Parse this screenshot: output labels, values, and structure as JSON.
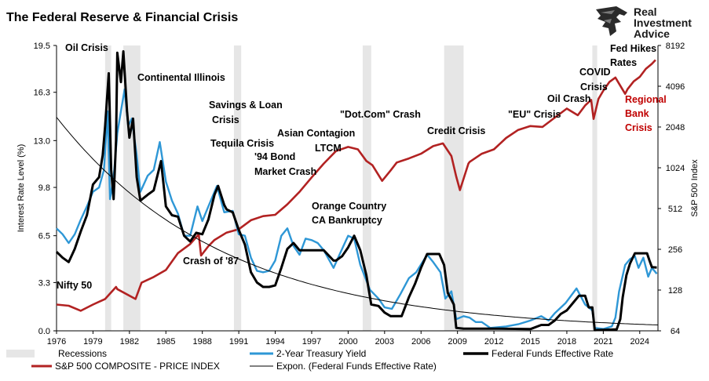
{
  "title": "The Federal Reserve & Financial Crisis",
  "brand": {
    "name": "Real Investment Advice",
    "lines": [
      "Real",
      "Investment",
      "Advice"
    ],
    "logo_icon": "eagle-head-icon"
  },
  "chart_data": {
    "type": "line",
    "x_ticks": [
      "1976",
      "1979",
      "1982",
      "1985",
      "1988",
      "1991",
      "1994",
      "1997",
      "2000",
      "2003",
      "2006",
      "2009",
      "2012",
      "2015",
      "2018",
      "2021",
      "2024"
    ],
    "xlim": [
      1976,
      2025.5
    ],
    "ylabel": "Interest Rate Level (%)",
    "ylim": [
      0,
      19.5
    ],
    "yticks": [
      "0.0",
      "3.3",
      "6.5",
      "9.8",
      "13.0",
      "16.3",
      "19.5"
    ],
    "y2label": "S&P 500 Index",
    "y2_scale": "log2",
    "y2lim": [
      64,
      8192
    ],
    "y2ticks": [
      "64",
      "128",
      "256",
      "512",
      "1024",
      "2048",
      "4096",
      "8192"
    ],
    "recessions": [
      [
        1980.0,
        1980.5
      ],
      [
        1981.5,
        1982.9
      ],
      [
        1990.6,
        1991.2
      ],
      [
        2001.2,
        2001.9
      ],
      [
        2007.9,
        2009.5
      ],
      [
        2020.1,
        2020.5
      ]
    ],
    "series": [
      {
        "name": "Federal Funds Effective Rate",
        "axis": "left",
        "color": "#000000",
        "points": [
          [
            1976,
            5.4
          ],
          [
            1976.5,
            5.0
          ],
          [
            1977,
            4.7
          ],
          [
            1977.5,
            5.6
          ],
          [
            1978,
            6.8
          ],
          [
            1978.5,
            7.9
          ],
          [
            1979,
            10.0
          ],
          [
            1979.5,
            10.5
          ],
          [
            1979.8,
            12.0
          ],
          [
            1980,
            14.0
          ],
          [
            1980.3,
            17.6
          ],
          [
            1980.5,
            11.0
          ],
          [
            1980.7,
            9.0
          ],
          [
            1980.9,
            13.0
          ],
          [
            1981,
            19.0
          ],
          [
            1981.3,
            17.0
          ],
          [
            1981.5,
            19.1
          ],
          [
            1981.8,
            15.0
          ],
          [
            1982,
            13.2
          ],
          [
            1982.3,
            14.5
          ],
          [
            1982.6,
            10.5
          ],
          [
            1982.9,
            8.9
          ],
          [
            1983.5,
            9.3
          ],
          [
            1984,
            9.6
          ],
          [
            1984.6,
            11.6
          ],
          [
            1985,
            8.5
          ],
          [
            1985.5,
            7.9
          ],
          [
            1986,
            7.8
          ],
          [
            1986.5,
            6.5
          ],
          [
            1987,
            6.1
          ],
          [
            1987.5,
            6.7
          ],
          [
            1988,
            6.6
          ],
          [
            1988.5,
            7.6
          ],
          [
            1989,
            9.3
          ],
          [
            1989.3,
            9.9
          ],
          [
            1989.8,
            8.6
          ],
          [
            1990,
            8.3
          ],
          [
            1990.5,
            8.1
          ],
          [
            1991,
            6.9
          ],
          [
            1991.5,
            5.9
          ],
          [
            1992,
            4.0
          ],
          [
            1992.5,
            3.3
          ],
          [
            1993,
            3.0
          ],
          [
            1993.5,
            3.0
          ],
          [
            1994,
            3.1
          ],
          [
            1994.5,
            4.3
          ],
          [
            1995,
            5.6
          ],
          [
            1995.5,
            6.0
          ],
          [
            1996,
            5.5
          ],
          [
            1997,
            5.5
          ],
          [
            1998,
            5.5
          ],
          [
            1998.8,
            4.8
          ],
          [
            1999,
            4.8
          ],
          [
            1999.5,
            5.1
          ],
          [
            2000,
            5.7
          ],
          [
            2000.5,
            6.5
          ],
          [
            2001,
            5.5
          ],
          [
            2001.5,
            3.8
          ],
          [
            2001.9,
            1.8
          ],
          [
            2002.5,
            1.7
          ],
          [
            2003,
            1.25
          ],
          [
            2003.5,
            1.0
          ],
          [
            2004.4,
            1.0
          ],
          [
            2005,
            2.3
          ],
          [
            2005.5,
            3.2
          ],
          [
            2006,
            4.3
          ],
          [
            2006.5,
            5.25
          ],
          [
            2007.5,
            5.25
          ],
          [
            2007.9,
            4.5
          ],
          [
            2008.2,
            2.6
          ],
          [
            2008.7,
            1.8
          ],
          [
            2008.9,
            0.2
          ],
          [
            2009.5,
            0.15
          ],
          [
            2012,
            0.15
          ],
          [
            2015,
            0.12
          ],
          [
            2015.9,
            0.4
          ],
          [
            2016.5,
            0.4
          ],
          [
            2017,
            0.7
          ],
          [
            2017.5,
            1.15
          ],
          [
            2018,
            1.4
          ],
          [
            2018.5,
            1.9
          ],
          [
            2019,
            2.4
          ],
          [
            2019.5,
            2.4
          ],
          [
            2019.8,
            1.6
          ],
          [
            2020.1,
            1.6
          ],
          [
            2020.3,
            0.05
          ],
          [
            2021.5,
            0.08
          ],
          [
            2022.1,
            0.1
          ],
          [
            2022.4,
            0.8
          ],
          [
            2022.6,
            2.3
          ],
          [
            2022.9,
            3.8
          ],
          [
            2023.2,
            4.6
          ],
          [
            2023.6,
            5.3
          ],
          [
            2024.6,
            5.3
          ],
          [
            2024.8,
            4.8
          ],
          [
            2025.0,
            4.35
          ],
          [
            2025.4,
            4.33
          ]
        ]
      },
      {
        "name": "2-Year Treasury Yield",
        "axis": "left",
        "color": "#2e97d6",
        "points": [
          [
            1976,
            7.0
          ],
          [
            1976.5,
            6.6
          ],
          [
            1977,
            6.0
          ],
          [
            1977.5,
            6.6
          ],
          [
            1978,
            7.6
          ],
          [
            1978.5,
            8.5
          ],
          [
            1979,
            9.5
          ],
          [
            1979.5,
            9.8
          ],
          [
            1979.9,
            11.0
          ],
          [
            1980.2,
            15.0
          ],
          [
            1980.4,
            9.0
          ],
          [
            1980.7,
            10.5
          ],
          [
            1981,
            13.5
          ],
          [
            1981.3,
            15.0
          ],
          [
            1981.6,
            16.5
          ],
          [
            1981.9,
            14.0
          ],
          [
            1982.2,
            14.5
          ],
          [
            1982.6,
            12.0
          ],
          [
            1982.9,
            9.5
          ],
          [
            1983.5,
            10.6
          ],
          [
            1984,
            11.0
          ],
          [
            1984.5,
            12.9
          ],
          [
            1985,
            10.2
          ],
          [
            1985.5,
            8.9
          ],
          [
            1986,
            8.0
          ],
          [
            1986.5,
            6.5
          ],
          [
            1987,
            6.5
          ],
          [
            1987.6,
            8.5
          ],
          [
            1988,
            7.5
          ],
          [
            1988.5,
            8.5
          ],
          [
            1989.2,
            9.9
          ],
          [
            1989.8,
            8.1
          ],
          [
            1990.5,
            8.2
          ],
          [
            1991,
            6.6
          ],
          [
            1991.5,
            6.5
          ],
          [
            1992,
            5.0
          ],
          [
            1992.5,
            4.1
          ],
          [
            1993,
            4.0
          ],
          [
            1993.5,
            4.1
          ],
          [
            1994,
            4.8
          ],
          [
            1994.5,
            6.5
          ],
          [
            1995,
            7.0
          ],
          [
            1995.5,
            5.8
          ],
          [
            1996,
            5.2
          ],
          [
            1996.5,
            6.3
          ],
          [
            1997,
            6.2
          ],
          [
            1997.5,
            6.0
          ],
          [
            1998,
            5.5
          ],
          [
            1998.8,
            4.3
          ],
          [
            1999.5,
            5.6
          ],
          [
            2000,
            6.5
          ],
          [
            2000.5,
            6.3
          ],
          [
            2001,
            4.5
          ],
          [
            2001.8,
            2.8
          ],
          [
            2002.5,
            2.2
          ],
          [
            2003,
            1.6
          ],
          [
            2003.6,
            1.5
          ],
          [
            2004.3,
            2.5
          ],
          [
            2005,
            3.6
          ],
          [
            2005.6,
            4.0
          ],
          [
            2006.5,
            5.2
          ],
          [
            2007,
            4.7
          ],
          [
            2007.6,
            4.0
          ],
          [
            2008,
            2.2
          ],
          [
            2008.5,
            2.7
          ],
          [
            2008.9,
            0.8
          ],
          [
            2009.5,
            1.0
          ],
          [
            2010,
            0.9
          ],
          [
            2010.5,
            0.6
          ],
          [
            2011,
            0.6
          ],
          [
            2011.7,
            0.2
          ],
          [
            2013,
            0.3
          ],
          [
            2014,
            0.45
          ],
          [
            2015,
            0.7
          ],
          [
            2015.9,
            1.0
          ],
          [
            2016.5,
            0.7
          ],
          [
            2017,
            1.2
          ],
          [
            2017.9,
            1.9
          ],
          [
            2018.8,
            2.9
          ],
          [
            2019.5,
            1.8
          ],
          [
            2020.1,
            1.4
          ],
          [
            2020.3,
            0.2
          ],
          [
            2021,
            0.13
          ],
          [
            2021.7,
            0.3
          ],
          [
            2022,
            0.9
          ],
          [
            2022.3,
            2.7
          ],
          [
            2022.8,
            4.5
          ],
          [
            2023.2,
            4.9
          ],
          [
            2023.6,
            5.1
          ],
          [
            2023.9,
            4.3
          ],
          [
            2024.3,
            5.0
          ],
          [
            2024.7,
            3.7
          ],
          [
            2025.0,
            4.3
          ],
          [
            2025.4,
            3.9
          ]
        ]
      },
      {
        "name": "S&P 500 COMPOSITE - PRICE INDEX",
        "axis": "right",
        "color": "#b22222",
        "points": [
          [
            1976,
            100
          ],
          [
            1977,
            98
          ],
          [
            1978,
            90
          ],
          [
            1979,
            100
          ],
          [
            1980,
            110
          ],
          [
            1980.9,
            135
          ],
          [
            1981,
            130
          ],
          [
            1982.5,
            110
          ],
          [
            1983,
            145
          ],
          [
            1984,
            160
          ],
          [
            1985,
            180
          ],
          [
            1986,
            240
          ],
          [
            1987,
            280
          ],
          [
            1987.7,
            330
          ],
          [
            1987.9,
            230
          ],
          [
            1988.5,
            270
          ],
          [
            1989,
            300
          ],
          [
            1990,
            340
          ],
          [
            1991,
            360
          ],
          [
            1992,
            420
          ],
          [
            1993,
            450
          ],
          [
            1994,
            460
          ],
          [
            1995,
            550
          ],
          [
            1996,
            680
          ],
          [
            1997,
            870
          ],
          [
            1998,
            1100
          ],
          [
            1999,
            1360
          ],
          [
            2000,
            1460
          ],
          [
            2000.8,
            1400
          ],
          [
            2001.5,
            1150
          ],
          [
            2002,
            1070
          ],
          [
            2002.8,
            820
          ],
          [
            2003.5,
            980
          ],
          [
            2004,
            1120
          ],
          [
            2005,
            1200
          ],
          [
            2006,
            1300
          ],
          [
            2007,
            1480
          ],
          [
            2007.8,
            1550
          ],
          [
            2008.5,
            1250
          ],
          [
            2008.9,
            880
          ],
          [
            2009.2,
            700
          ],
          [
            2009.9,
            1100
          ],
          [
            2010,
            1130
          ],
          [
            2011,
            1300
          ],
          [
            2012,
            1400
          ],
          [
            2013,
            1700
          ],
          [
            2014,
            1950
          ],
          [
            2015,
            2080
          ],
          [
            2016,
            2050
          ],
          [
            2017,
            2400
          ],
          [
            2018,
            2800
          ],
          [
            2018.9,
            2500
          ],
          [
            2019.5,
            2950
          ],
          [
            2020.0,
            3250
          ],
          [
            2020.2,
            2350
          ],
          [
            2020.6,
            3300
          ],
          [
            2021,
            3800
          ],
          [
            2021.5,
            4400
          ],
          [
            2022,
            4750
          ],
          [
            2022.8,
            3600
          ],
          [
            2023,
            3900
          ],
          [
            2023.5,
            4450
          ],
          [
            2024,
            4800
          ],
          [
            2024.5,
            5500
          ],
          [
            2025,
            6000
          ],
          [
            2025.3,
            6400
          ]
        ]
      },
      {
        "name": "Expon. (Federal Funds Effective Rate)",
        "axis": "left",
        "color": "#000000",
        "trend": "exponential",
        "points": [
          [
            1976,
            14.6
          ],
          [
            2025.5,
            0.4
          ]
        ]
      }
    ],
    "legend_position": "bottom"
  },
  "annotations": [
    {
      "text": "Oil Crisis"
    },
    {
      "text": "Continental Illinois"
    },
    {
      "text": "Savings & Loan"
    },
    {
      "text": "Crisis"
    },
    {
      "text": "Tequila Crisis"
    },
    {
      "text": "Asian Contagion"
    },
    {
      "text": "LTCM"
    },
    {
      "text": "'94 Bond"
    },
    {
      "text": "Market Crash"
    },
    {
      "text": "\"Dot.Com\" Crash"
    },
    {
      "text": "Credit Crisis"
    },
    {
      "text": "\"EU\" Crisis"
    },
    {
      "text": "Oil Crash"
    },
    {
      "text": "COVID"
    },
    {
      "text": "Crisis"
    },
    {
      "text": "Fed Hikes"
    },
    {
      "text": "Rates"
    },
    {
      "text": "Orange Country"
    },
    {
      "text": "CA Bankruptcy"
    },
    {
      "text": "Crash of '87"
    },
    {
      "text": "Nifty 50"
    },
    {
      "text": "Regional"
    },
    {
      "text": "Bank"
    },
    {
      "text": "Crisis"
    }
  ],
  "legend": [
    "Recessions",
    "2-Year Treasury Yield",
    "Federal Funds Effective Rate",
    "S&P 500 COMPOSITE - PRICE INDEX",
    "Expon. (Federal Funds Effective Rate)"
  ]
}
